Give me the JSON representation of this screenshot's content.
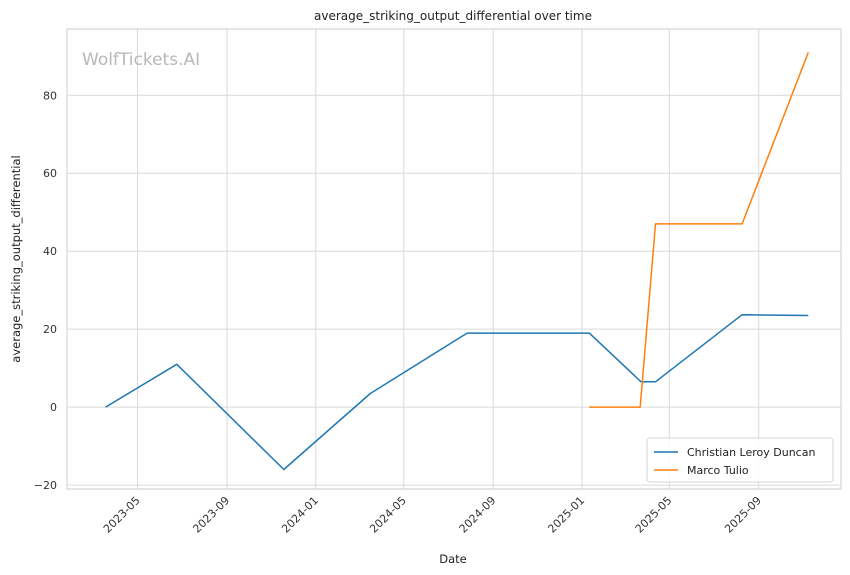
{
  "chart_data": {
    "type": "line",
    "title": "average_striking_output_differential over time",
    "xlabel": "Date",
    "ylabel": "average_striking_output_differential",
    "watermark": "WolfTickets.AI",
    "xlim": [
      "2023-01-24",
      "2025-12-23"
    ],
    "ylim": [
      -21,
      97
    ],
    "x_ticks": [
      "2023-05",
      "2023-09",
      "2024-01",
      "2024-05",
      "2024-09",
      "2025-01",
      "2025-05",
      "2025-09"
    ],
    "y_ticks": [
      -20,
      0,
      20,
      40,
      60,
      80
    ],
    "grid": true,
    "legend_position": "lower-right",
    "series": [
      {
        "name": "Christian Leroy Duncan",
        "color": "#1f77b4",
        "points": [
          {
            "x": "2023-03-18",
            "y": 0
          },
          {
            "x": "2023-06-24",
            "y": 11
          },
          {
            "x": "2023-11-18",
            "y": -16
          },
          {
            "x": "2024-03-16",
            "y": 3.5
          },
          {
            "x": "2024-07-27",
            "y": 19
          },
          {
            "x": "2025-01-11",
            "y": 19
          },
          {
            "x": "2025-03-23",
            "y": 6.5
          },
          {
            "x": "2025-04-12",
            "y": 6.5
          },
          {
            "x": "2025-08-09",
            "y": 23.7
          },
          {
            "x": "2025-11-08",
            "y": 23.5
          }
        ]
      },
      {
        "name": "Marco Tulio",
        "color": "#ff7f0e",
        "points": [
          {
            "x": "2025-01-11",
            "y": 0
          },
          {
            "x": "2025-03-22",
            "y": 0
          },
          {
            "x": "2025-04-12",
            "y": 47
          },
          {
            "x": "2025-08-09",
            "y": 47
          },
          {
            "x": "2025-11-08",
            "y": 91
          }
        ]
      }
    ]
  }
}
